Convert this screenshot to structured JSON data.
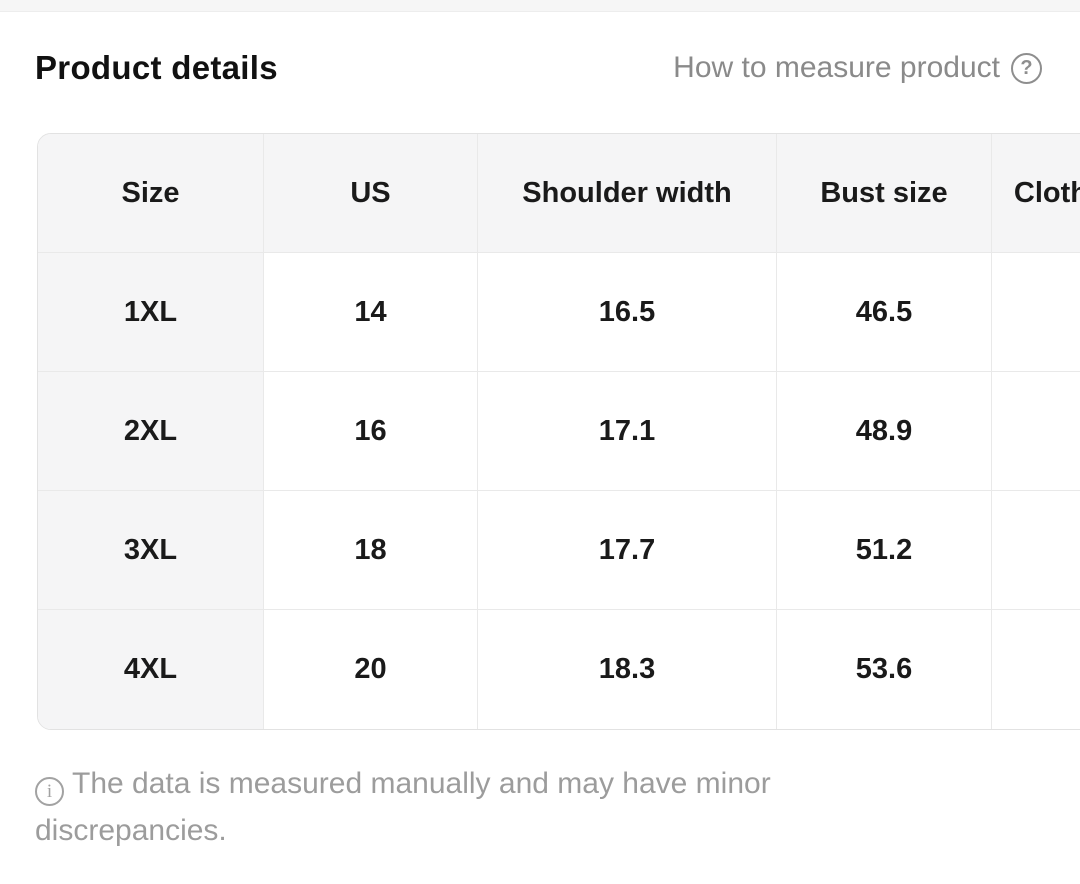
{
  "page_header": {
    "title": "Product details",
    "help_label": "How to measure product",
    "help_icon": "question-mark-circle-icon"
  },
  "size_table": {
    "columns": [
      "Size",
      "US",
      "Shoulder width",
      "Bust size",
      "Cloth length"
    ],
    "rows": [
      [
        "1XL",
        "14",
        "16.5",
        "46.5",
        ""
      ],
      [
        "2XL",
        "16",
        "17.1",
        "48.9",
        ""
      ],
      [
        "3XL",
        "18",
        "17.7",
        "51.2",
        ""
      ],
      [
        "4XL",
        "20",
        "18.3",
        "53.6",
        ""
      ]
    ]
  },
  "note": {
    "icon": "info-circle-icon",
    "text": "The data is measured manually and may have minor discrepancies."
  },
  "colors": {
    "header_cell_bg": "#f5f5f6",
    "table_border": "#e9e9e9",
    "muted_text": "#8a8a8a",
    "note_text": "#9c9c9c",
    "body_text": "#1a1a1a"
  }
}
